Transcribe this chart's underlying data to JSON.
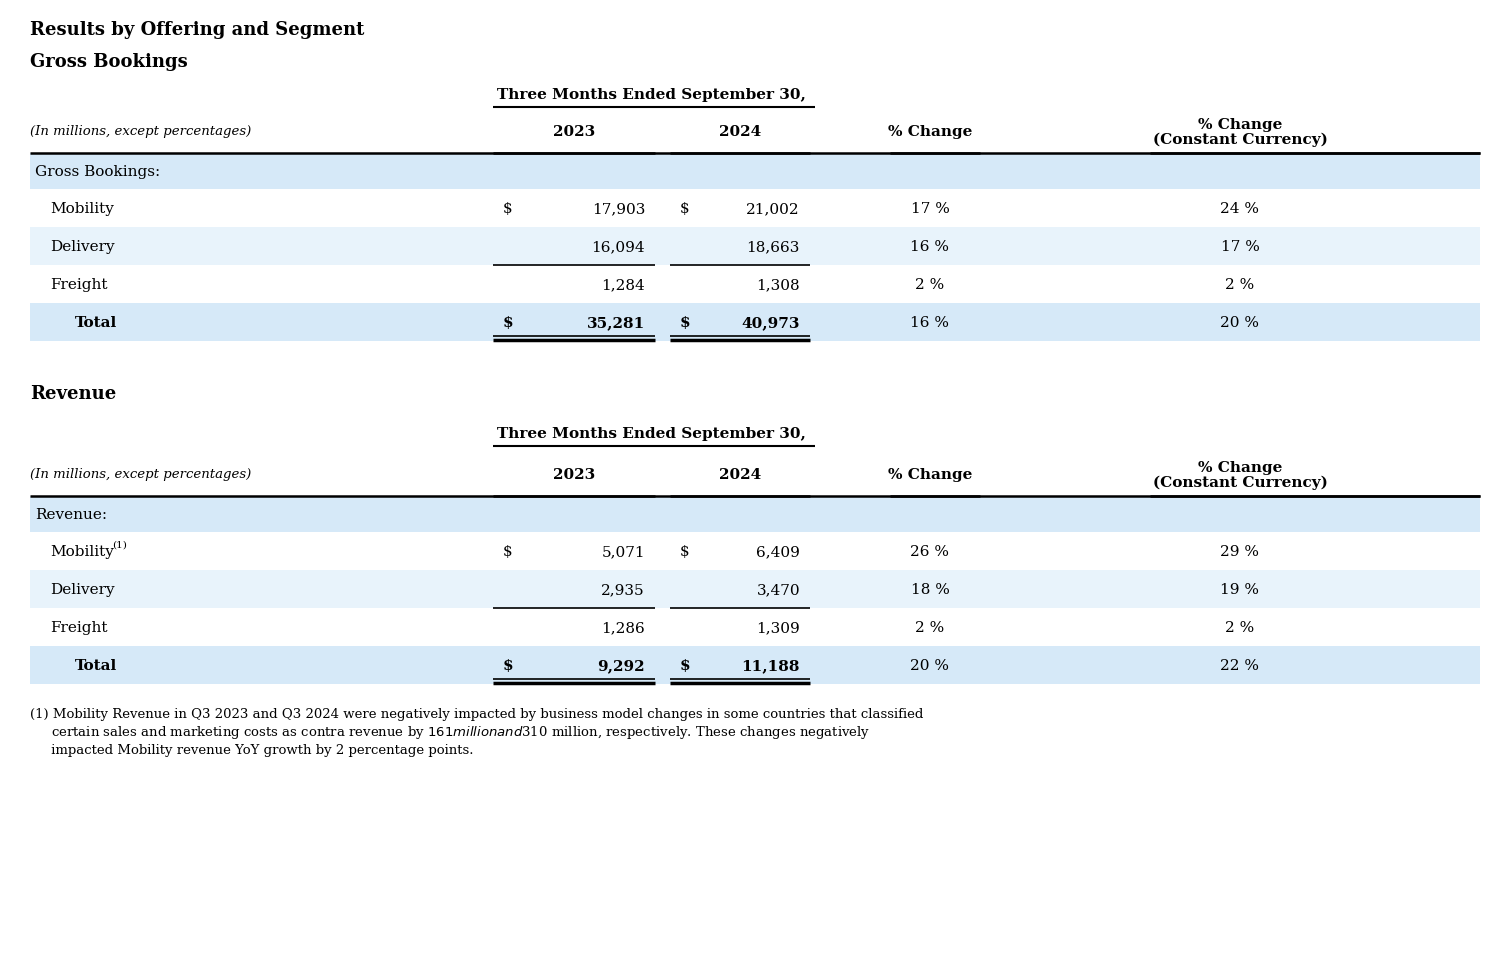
{
  "title1": "Results by Offering and Segment",
  "title2": "Gross Bookings",
  "title3": "Revenue",
  "header_center": "Three Months Ended September 30,",
  "col_label": "(In millions, except percentages)",
  "col_2023": "2023",
  "col_2024": "2024",
  "col_pct_change": "% Change",
  "col_const_line1": "% Change",
  "col_const_line2": "(Constant Currency)",
  "gb_section_label": "Gross Bookings:",
  "gb_rows": [
    {
      "label": "Mobility",
      "val2023": "17,903",
      "val2024": "21,002",
      "pct": "17 %",
      "const": "24 %",
      "dollar2023": true,
      "dollar2024": true,
      "is_total": false
    },
    {
      "label": "Delivery",
      "val2023": "16,094",
      "val2024": "18,663",
      "pct": "16 %",
      "const": "17 %",
      "dollar2023": false,
      "dollar2024": false,
      "is_total": false
    },
    {
      "label": "Freight",
      "val2023": "1,284",
      "val2024": "1,308",
      "pct": "2 %",
      "const": "2 %",
      "dollar2023": false,
      "dollar2024": false,
      "is_total": false
    },
    {
      "label": "Total",
      "val2023": "35,281",
      "val2024": "40,973",
      "pct": "16 %",
      "const": "20 %",
      "dollar2023": true,
      "dollar2024": true,
      "is_total": true
    }
  ],
  "rev_section_label": "Revenue:",
  "rev_rows": [
    {
      "label": "Mobility",
      "superscript": true,
      "val2023": "5,071",
      "val2024": "6,409",
      "pct": "26 %",
      "const": "29 %",
      "dollar2023": true,
      "dollar2024": true,
      "is_total": false
    },
    {
      "label": "Delivery",
      "superscript": false,
      "val2023": "2,935",
      "val2024": "3,470",
      "pct": "18 %",
      "const": "19 %",
      "dollar2023": false,
      "dollar2024": false,
      "is_total": false
    },
    {
      "label": "Freight",
      "superscript": false,
      "val2023": "1,286",
      "val2024": "1,309",
      "pct": "2 %",
      "const": "2 %",
      "dollar2023": false,
      "dollar2024": false,
      "is_total": false
    },
    {
      "label": "Total",
      "superscript": false,
      "val2023": "9,292",
      "val2024": "11,188",
      "pct": "20 %",
      "const": "22 %",
      "dollar2023": true,
      "dollar2024": true,
      "is_total": true
    }
  ],
  "footnote_line1": "(1) Mobility Revenue in Q3 2023 and Q3 2024 were negatively impacted by business model changes in some countries that classified",
  "footnote_line2": "     certain sales and marketing costs as contra revenue by $161 million and $310 million, respectively. These changes negatively",
  "footnote_line3": "     impacted Mobility revenue YoY growth by 2 percentage points.",
  "bg_color": "#ffffff",
  "section_bg": "#d6e9f8",
  "row_bg_alt": "#e8f3fb",
  "row_bg_white": "#ffffff",
  "total_bg": "#d6e9f8"
}
